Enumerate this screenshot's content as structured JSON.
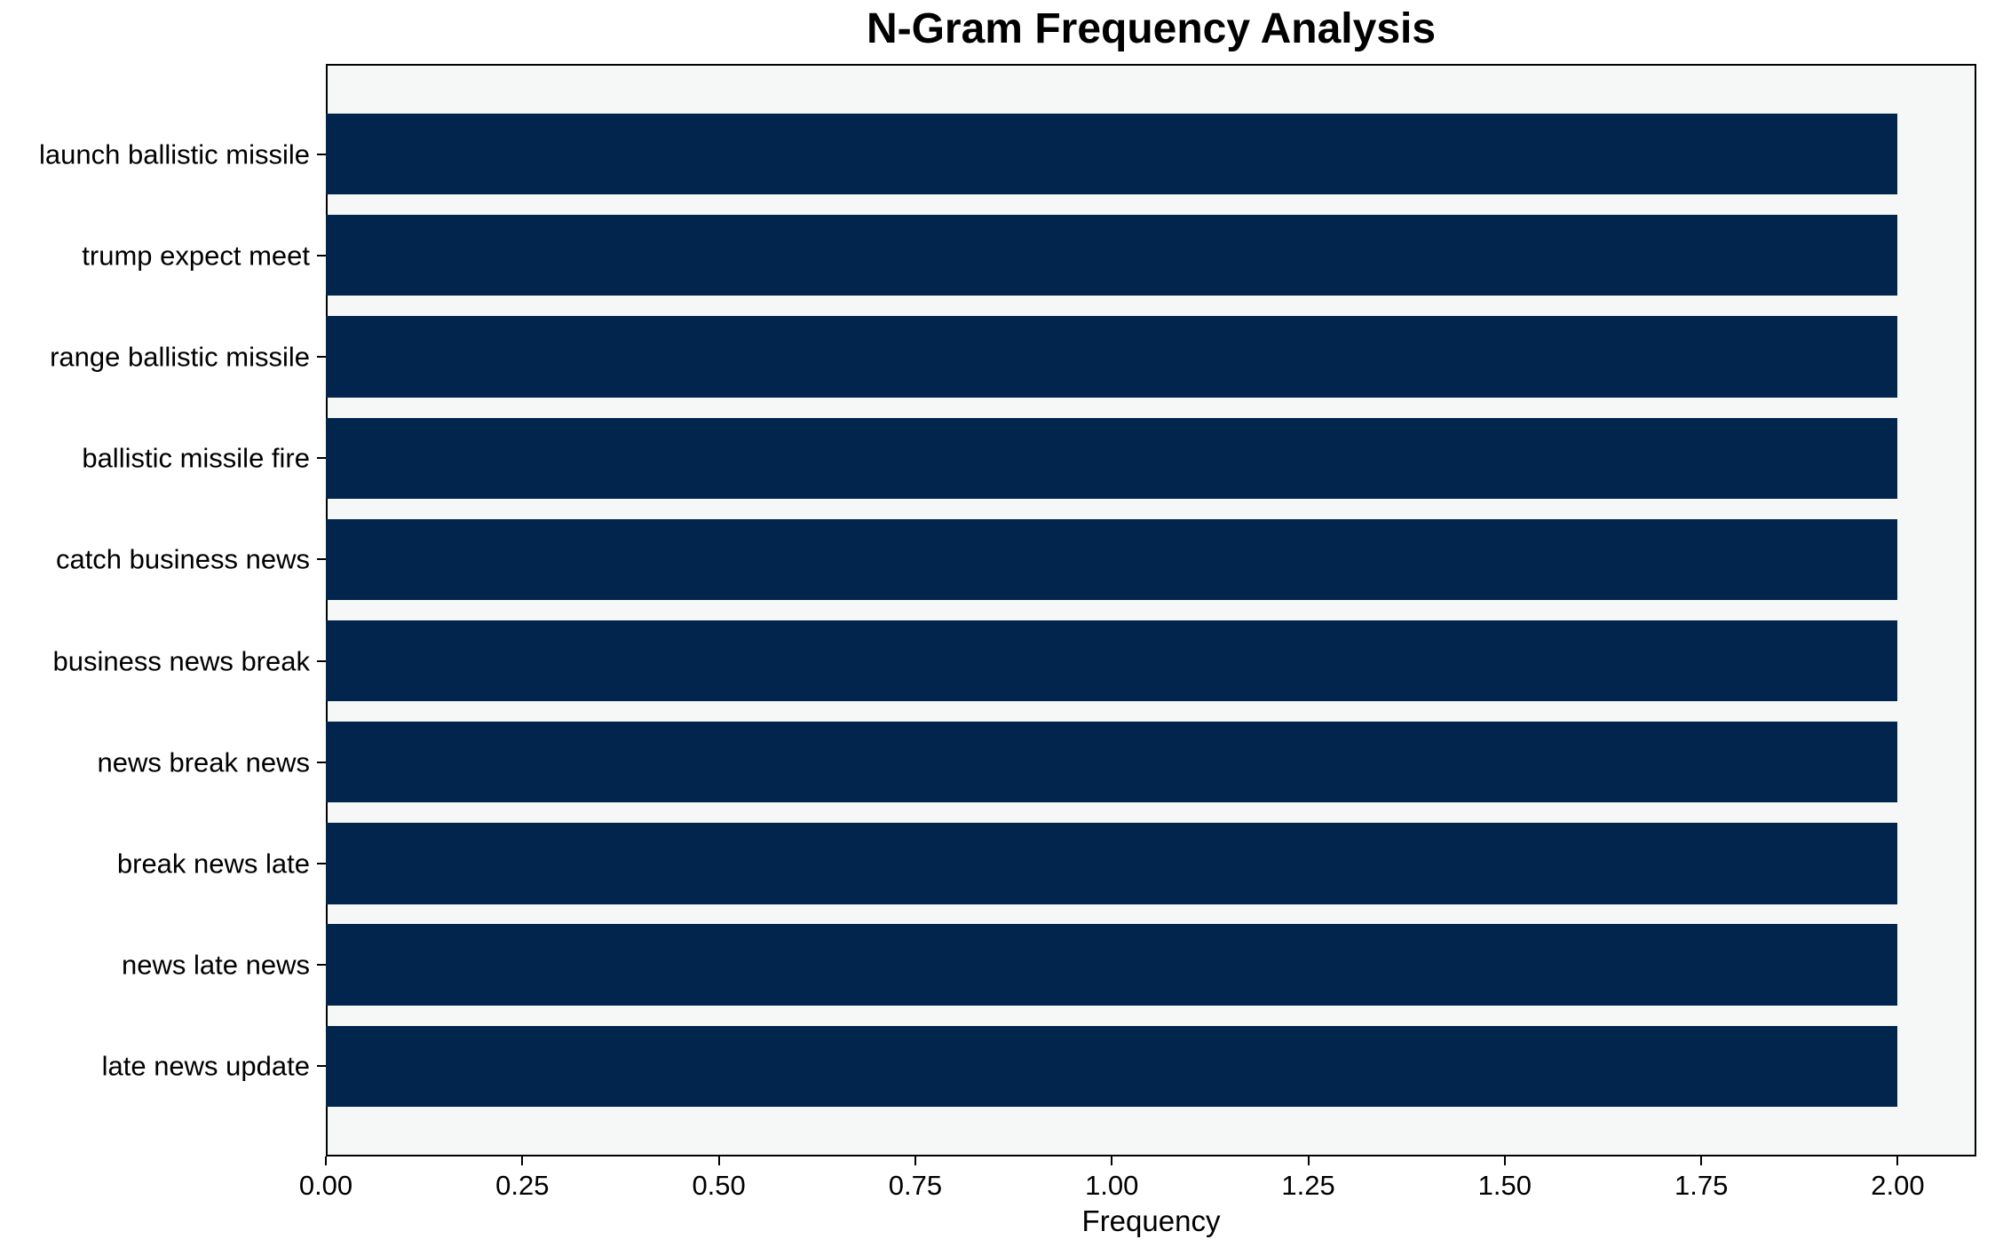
{
  "chart_data": {
    "type": "bar",
    "orientation": "horizontal",
    "title": "N-Gram Frequency Analysis",
    "xlabel": "Frequency",
    "ylabel": "",
    "categories": [
      "launch ballistic missile",
      "trump expect meet",
      "range ballistic missile",
      "ballistic missile fire",
      "catch business news",
      "business news break",
      "news break news",
      "break news late",
      "news late news",
      "late news update"
    ],
    "values": [
      2,
      2,
      2,
      2,
      2,
      2,
      2,
      2,
      2,
      2
    ],
    "xlim": [
      0,
      2.1
    ],
    "xticks": [
      0,
      0.25,
      0.5,
      0.75,
      1.0,
      1.25,
      1.5,
      1.75,
      2.0
    ],
    "xtick_labels": [
      "0.00",
      "0.25",
      "0.50",
      "0.75",
      "1.00",
      "1.25",
      "1.50",
      "1.75",
      "2.00"
    ],
    "grid": false,
    "legend": null,
    "colors": {
      "bar": "#02254e",
      "plot_bg": "#f6f7f7",
      "figure_bg": "#ffffff",
      "spine": "#000000",
      "text": "#000000"
    }
  }
}
